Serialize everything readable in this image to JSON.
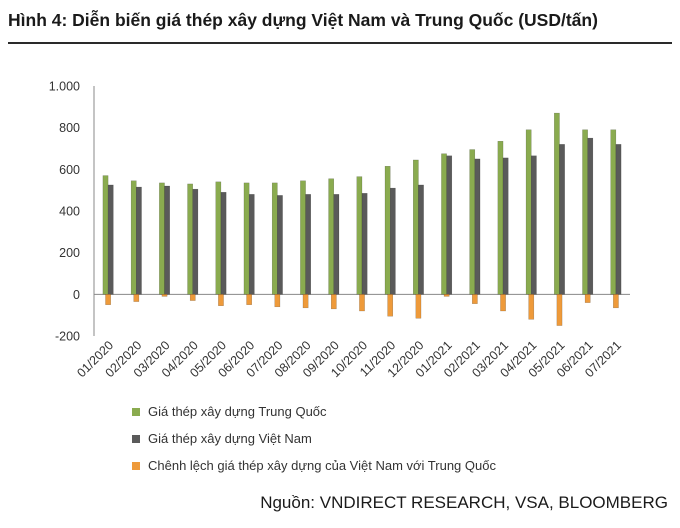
{
  "title": "Hình 4: Diễn biến giá thép xây dựng Việt Nam và Trung Quốc (USD/tấn)",
  "source": "Nguồn: VNDIRECT RESEARCH, VSA, BLOOMBERG",
  "chart_data": {
    "type": "bar",
    "title": "Hình 4: Diễn biến giá thép xây dựng Việt Nam và Trung Quốc (USD/tấn)",
    "ylim": [
      -200,
      1000
    ],
    "yticks": [
      1000,
      800,
      600,
      400,
      200,
      0,
      -200
    ],
    "ytick_labels": [
      "1.000",
      "800",
      "600",
      "400",
      "200",
      "0",
      "-200"
    ],
    "grid": false,
    "legend_position": "bottom-left",
    "categories": [
      "01/2020",
      "02/2020",
      "03/2020",
      "04/2020",
      "05/2020",
      "06/2020",
      "07/2020",
      "08/2020",
      "09/2020",
      "10/2020",
      "11/2020",
      "12/2020",
      "01/2021",
      "02/2021",
      "03/2021",
      "04/2021",
      "05/2021",
      "06/2021",
      "07/2021"
    ],
    "series": [
      {
        "name": "Giá thép xây dựng Trung Quốc",
        "color": "#8aab4f",
        "values": [
          570,
          545,
          535,
          530,
          540,
          535,
          535,
          545,
          555,
          565,
          615,
          645,
          675,
          695,
          735,
          790,
          870,
          790,
          790
        ]
      },
      {
        "name": "Giá thép xây dựng Việt Nam",
        "color": "#5a5a5a",
        "values": [
          525,
          515,
          520,
          505,
          490,
          480,
          475,
          480,
          480,
          485,
          510,
          525,
          665,
          650,
          655,
          665,
          720,
          750,
          720
        ]
      },
      {
        "name": "Chênh lệch giá thép xây dựng của Việt Nam với Trung Quốc",
        "color": "#ee9a3a",
        "values": [
          -50,
          -35,
          -10,
          -30,
          -55,
          -50,
          -60,
          -65,
          -70,
          -80,
          -105,
          -115,
          -10,
          -45,
          -80,
          -120,
          -150,
          -40,
          -65
        ]
      }
    ]
  }
}
